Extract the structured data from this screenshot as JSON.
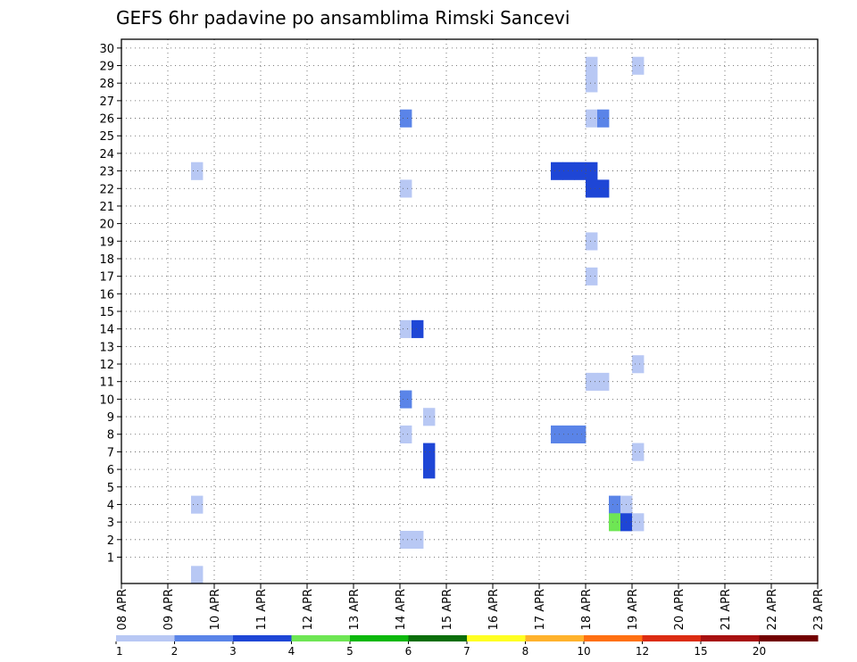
{
  "chart_data": {
    "type": "heatmap",
    "title": "GEFS 6hr padavine po ansamblima Rimski Sancevi",
    "xlabel": "",
    "ylabel": "",
    "x_tick_labels": [
      "08 APR",
      "09 APR",
      "10 APR",
      "11 APR",
      "12 APR",
      "13 APR",
      "14 APR",
      "15 APR",
      "16 APR",
      "17 APR",
      "18 APR",
      "19 APR",
      "20 APR",
      "21 APR",
      "22 APR",
      "23 APR"
    ],
    "y_tick_labels": [
      "1",
      "2",
      "3",
      "4",
      "5",
      "6",
      "7",
      "8",
      "9",
      "10",
      "11",
      "12",
      "13",
      "14",
      "15",
      "16",
      "17",
      "18",
      "19",
      "20",
      "21",
      "22",
      "23",
      "24",
      "25",
      "26",
      "27",
      "28",
      "29",
      "30"
    ],
    "x_range_days": [
      0,
      15
    ],
    "time_step_hours": 6,
    "members_range": [
      0,
      30
    ],
    "grid": "dotted",
    "colorbar": {
      "placement": "bottom",
      "bounds": [
        "1",
        "2",
        "3",
        "4",
        "5",
        "6",
        "7",
        "8",
        "10",
        "12",
        "15",
        "20"
      ],
      "colors": [
        "#b8c8f4",
        "#5a84e8",
        "#1e46d6",
        "#6ee654",
        "#0cb80c",
        "#0a6e0a",
        "#ffff22",
        "#ffb22c",
        "#ff7012",
        "#dc2c12",
        "#a81010",
        "#720000"
      ]
    },
    "cells": [
      [
        30,
        126,
        1
      ],
      [
        30,
        127,
        2
      ],
      [
        30,
        128,
        2
      ],
      [
        30,
        129,
        2
      ],
      [
        30,
        130,
        2
      ],
      [
        30,
        131,
        2
      ],
      [
        30,
        132,
        2
      ],
      [
        30,
        133,
        2
      ],
      [
        30,
        134,
        2
      ],
      [
        30,
        135,
        1
      ],
      [
        29,
        40,
        0
      ],
      [
        29,
        44,
        0
      ],
      [
        29,
        109,
        1
      ],
      [
        29,
        114,
        0
      ],
      [
        29,
        134,
        6
      ],
      [
        29,
        135,
        7
      ],
      [
        29,
        136,
        0
      ],
      [
        29,
        137,
        2
      ],
      [
        28,
        40,
        0
      ],
      [
        28,
        135,
        0
      ],
      [
        27,
        68,
        0
      ],
      [
        27,
        69,
        1
      ],
      [
        27,
        89,
        2
      ],
      [
        27,
        90,
        1
      ],
      [
        27,
        97,
        5
      ],
      [
        27,
        98,
        0
      ],
      [
        27,
        122,
        0
      ],
      [
        27,
        129,
        0
      ],
      [
        26,
        24,
        1
      ],
      [
        26,
        40,
        0
      ],
      [
        26,
        41,
        1
      ],
      [
        25,
        92,
        0
      ],
      [
        25,
        151,
        5
      ],
      [
        24,
        112,
        0
      ],
      [
        24,
        127,
        4
      ],
      [
        24,
        128,
        7
      ],
      [
        23,
        6,
        0
      ],
      [
        23,
        37,
        2
      ],
      [
        23,
        38,
        2
      ],
      [
        23,
        39,
        2
      ],
      [
        23,
        40,
        2
      ],
      [
        23,
        129,
        0
      ],
      [
        22,
        24,
        0
      ],
      [
        22,
        40,
        2
      ],
      [
        22,
        41,
        2
      ],
      [
        22,
        114,
        0
      ],
      [
        22,
        115,
        1
      ],
      [
        22,
        129,
        1
      ],
      [
        22,
        133,
        1
      ],
      [
        20,
        100,
        1
      ],
      [
        19,
        40,
        0
      ],
      [
        18,
        68,
        0
      ],
      [
        18,
        75,
        0
      ],
      [
        18,
        118,
        2
      ],
      [
        18,
        119,
        5
      ],
      [
        17,
        40,
        0
      ],
      [
        17,
        102,
        0
      ],
      [
        17,
        111,
        0
      ],
      [
        17,
        124,
        0
      ],
      [
        17,
        126,
        2
      ],
      [
        17,
        131,
        1
      ],
      [
        17,
        133,
        5
      ],
      [
        17,
        134,
        0
      ],
      [
        17,
        137,
        2
      ],
      [
        16,
        111,
        0
      ],
      [
        16,
        118,
        1
      ],
      [
        16,
        126,
        1
      ],
      [
        16,
        136,
        0
      ],
      [
        16,
        137,
        1
      ],
      [
        15,
        71,
        2
      ],
      [
        15,
        72,
        1
      ],
      [
        15,
        140,
        2
      ],
      [
        14,
        24,
        0
      ],
      [
        14,
        25,
        2
      ],
      [
        14,
        111,
        0
      ],
      [
        14,
        117,
        0
      ],
      [
        14,
        135,
        0
      ],
      [
        13,
        117,
        4
      ],
      [
        13,
        118,
        2
      ],
      [
        13,
        119,
        4
      ],
      [
        13,
        120,
        1
      ],
      [
        13,
        132,
        1
      ],
      [
        13,
        133,
        0
      ],
      [
        13,
        134,
        0
      ],
      [
        12,
        44,
        0
      ],
      [
        12,
        130,
        2
      ],
      [
        11,
        40,
        0
      ],
      [
        11,
        41,
        0
      ],
      [
        10,
        24,
        1
      ],
      [
        10,
        113,
        3
      ],
      [
        10,
        114,
        0
      ],
      [
        10,
        117,
        0
      ],
      [
        10,
        133,
        0
      ],
      [
        10,
        134,
        1
      ],
      [
        10,
        135,
        1
      ],
      [
        10,
        137,
        0
      ],
      [
        9,
        26,
        0
      ],
      [
        9,
        66,
        2
      ],
      [
        9,
        67,
        4
      ],
      [
        9,
        68,
        2
      ],
      [
        9,
        69,
        2
      ],
      [
        9,
        70,
        2
      ],
      [
        9,
        71,
        2
      ],
      [
        9,
        72,
        1
      ],
      [
        9,
        95,
        0
      ],
      [
        9,
        102,
        2
      ],
      [
        9,
        103,
        0
      ],
      [
        9,
        104,
        1
      ],
      [
        9,
        113,
        3
      ],
      [
        9,
        114,
        4
      ],
      [
        9,
        134,
        8
      ],
      [
        9,
        135,
        1
      ],
      [
        9,
        136,
        2
      ],
      [
        9,
        137,
        11
      ],
      [
        9,
        138,
        4
      ],
      [
        9,
        139,
        7
      ],
      [
        8,
        24,
        0
      ],
      [
        8,
        37,
        1
      ],
      [
        8,
        38,
        1
      ],
      [
        8,
        39,
        1
      ],
      [
        8,
        98,
        4
      ],
      [
        8,
        99,
        2
      ],
      [
        8,
        100,
        4
      ],
      [
        8,
        126,
        0
      ],
      [
        8,
        133,
        5
      ],
      [
        8,
        134,
        5
      ],
      [
        7,
        26,
        2
      ],
      [
        7,
        44,
        0
      ],
      [
        7,
        102,
        0
      ],
      [
        7,
        106,
        3
      ],
      [
        7,
        107,
        0
      ],
      [
        7,
        111,
        0
      ],
      [
        7,
        113,
        0
      ],
      [
        7,
        118,
        1
      ],
      [
        7,
        131,
        0
      ],
      [
        7,
        132,
        0
      ],
      [
        6,
        26,
        2
      ],
      [
        6,
        111,
        0
      ],
      [
        6,
        113,
        0
      ],
      [
        6,
        126,
        0
      ],
      [
        6,
        127,
        0
      ],
      [
        5,
        68,
        3
      ],
      [
        5,
        80,
        4
      ],
      [
        5,
        81,
        2
      ],
      [
        5,
        127,
        0
      ],
      [
        5,
        133,
        0
      ],
      [
        5,
        134,
        0
      ],
      [
        5,
        135,
        0
      ],
      [
        5,
        136,
        2
      ],
      [
        5,
        137,
        8
      ],
      [
        5,
        138,
        1
      ],
      [
        4,
        6,
        0
      ],
      [
        4,
        42,
        1
      ],
      [
        4,
        43,
        0
      ],
      [
        4,
        108,
        1
      ],
      [
        4,
        109,
        3
      ],
      [
        4,
        110,
        3
      ],
      [
        4,
        112,
        4
      ],
      [
        4,
        113,
        2
      ],
      [
        3,
        42,
        3
      ],
      [
        3,
        43,
        2
      ],
      [
        3,
        44,
        0
      ],
      [
        3,
        113,
        5
      ],
      [
        3,
        122,
        0
      ],
      [
        3,
        124,
        1
      ],
      [
        3,
        125,
        1
      ],
      [
        3,
        126,
        2
      ],
      [
        3,
        127,
        2
      ],
      [
        3,
        128,
        2
      ],
      [
        3,
        129,
        2
      ],
      [
        3,
        130,
        1
      ],
      [
        3,
        133,
        1
      ],
      [
        2,
        24,
        0
      ],
      [
        2,
        25,
        0
      ],
      [
        2,
        74,
        6
      ],
      [
        2,
        84,
        0
      ],
      [
        2,
        85,
        1
      ],
      [
        2,
        97,
        2
      ],
      [
        2,
        98,
        9
      ],
      [
        2,
        99,
        11
      ],
      [
        2,
        100,
        11
      ],
      [
        2,
        101,
        11
      ],
      [
        2,
        102,
        7
      ],
      [
        2,
        103,
        7
      ],
      [
        2,
        104,
        2
      ],
      [
        2,
        135,
        0
      ],
      [
        2,
        136,
        1
      ],
      [
        1,
        107,
        4
      ],
      [
        1,
        128,
        1
      ],
      [
        1,
        129,
        0
      ],
      [
        1,
        132,
        1
      ],
      [
        1,
        136,
        1
      ],
      [
        0,
        6,
        0
      ],
      [
        0,
        107,
        0
      ],
      [
        0,
        113,
        5
      ],
      [
        0,
        114,
        2
      ],
      [
        0,
        125,
        0
      ]
    ]
  }
}
